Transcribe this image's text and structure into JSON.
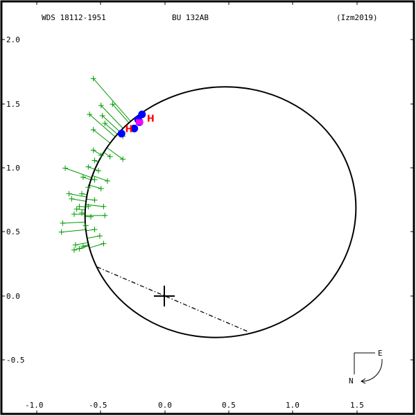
{
  "header": {
    "wds_id": "WDS 18112-1951",
    "discoverer": "BU  132AB",
    "reference": "(Izm2019)"
  },
  "compass": {
    "east_label": "E",
    "north_label": "N"
  },
  "colors": {
    "orbit": "#000000",
    "residual_lines": "#009900",
    "observations": "#009900",
    "speckle": "#0000ff",
    "highlight": "#ff00ff",
    "hipparcos_label": "#ff0000"
  },
  "chart_data": {
    "type": "scatter",
    "title": "WDS 18112-1951  BU 132AB  (Izm2019)",
    "xlabel": "",
    "ylabel": "",
    "xlim": [
      -1.1,
      1.95
    ],
    "ylim": [
      -0.85,
      2.15
    ],
    "x_ticks": [
      -1.0,
      -0.5,
      0.0,
      0.5,
      1.0,
      1.5
    ],
    "x_tick_labels": [
      "-1.0",
      "-0.5",
      "0.0",
      "0.5",
      "1.0",
      "1.5"
    ],
    "y_ticks": [
      2.0,
      1.5,
      1.0,
      0.5,
      0.0,
      -0.5
    ],
    "y_tick_labels": [
      "2.0",
      "1.5",
      "1.0",
      "0.5",
      "0.0",
      "-0.5"
    ],
    "grid": false,
    "orbit_ellipse": {
      "center": [
        0.34,
        0.66
      ],
      "description": "apparent relative orbit; top near y=1.63, bottom near y=-0.32, left near x=-0.62, right near x=1.5"
    },
    "line_of_nodes": {
      "from": [
        -0.53,
        0.23
      ],
      "to": [
        0.64,
        -0.28
      ]
    },
    "primary": [
      0.0,
      0.0
    ],
    "micrometer_observations": [
      {
        "x": -0.56,
        "y": 1.7
      },
      {
        "x": -0.5,
        "y": 1.49
      },
      {
        "x": -0.49,
        "y": 1.41
      },
      {
        "x": -0.59,
        "y": 1.42
      },
      {
        "x": -0.41,
        "y": 1.5
      },
      {
        "x": -0.56,
        "y": 1.3
      },
      {
        "x": -0.47,
        "y": 1.35
      },
      {
        "x": -0.33,
        "y": 1.25
      },
      {
        "x": -0.5,
        "y": 1.1
      },
      {
        "x": -0.43,
        "y": 1.09
      },
      {
        "x": -0.56,
        "y": 1.14
      },
      {
        "x": -0.33,
        "y": 1.07
      },
      {
        "x": -0.78,
        "y": 1.0
      },
      {
        "x": -0.6,
        "y": 1.01
      },
      {
        "x": -0.55,
        "y": 1.06
      },
      {
        "x": -0.52,
        "y": 0.98
      },
      {
        "x": -0.64,
        "y": 0.93
      },
      {
        "x": -0.55,
        "y": 0.91
      },
      {
        "x": -0.6,
        "y": 0.85
      },
      {
        "x": -0.5,
        "y": 0.84
      },
      {
        "x": -0.45,
        "y": 0.9
      },
      {
        "x": -0.65,
        "y": 0.8
      },
      {
        "x": -0.55,
        "y": 0.75
      },
      {
        "x": -0.48,
        "y": 0.7
      },
      {
        "x": -0.75,
        "y": 0.8
      },
      {
        "x": -0.73,
        "y": 0.76
      },
      {
        "x": -0.65,
        "y": 0.65
      },
      {
        "x": -0.58,
        "y": 0.62
      },
      {
        "x": -0.47,
        "y": 0.63
      },
      {
        "x": -0.62,
        "y": 0.55
      },
      {
        "x": -0.8,
        "y": 0.57
      },
      {
        "x": -0.55,
        "y": 0.52
      },
      {
        "x": -0.51,
        "y": 0.47
      },
      {
        "x": -0.81,
        "y": 0.5
      },
      {
        "x": -0.7,
        "y": 0.4
      },
      {
        "x": -0.67,
        "y": 0.37
      },
      {
        "x": -0.71,
        "y": 0.36
      },
      {
        "x": -0.64,
        "y": 0.39
      },
      {
        "x": -0.48,
        "y": 0.41
      },
      {
        "x": -0.67,
        "y": 0.7
      },
      {
        "x": -0.69,
        "y": 0.68
      },
      {
        "x": -0.71,
        "y": 0.64
      },
      {
        "x": -0.6,
        "y": 0.7
      }
    ],
    "speckle_observations": [
      {
        "x": -0.34,
        "y": 1.27
      },
      {
        "x": -0.24,
        "y": 1.31
      },
      {
        "x": -0.21,
        "y": 1.38
      },
      {
        "x": -0.18,
        "y": 1.42
      },
      {
        "x": -0.2,
        "y": 1.36
      }
    ],
    "highlighted_observations": [
      {
        "x": -0.2,
        "y": 1.36
      }
    ],
    "hipparcos_labels": [
      {
        "x": -0.29,
        "y": 1.31,
        "text": "H"
      },
      {
        "x": -0.12,
        "y": 1.39,
        "text": "H"
      }
    ]
  }
}
